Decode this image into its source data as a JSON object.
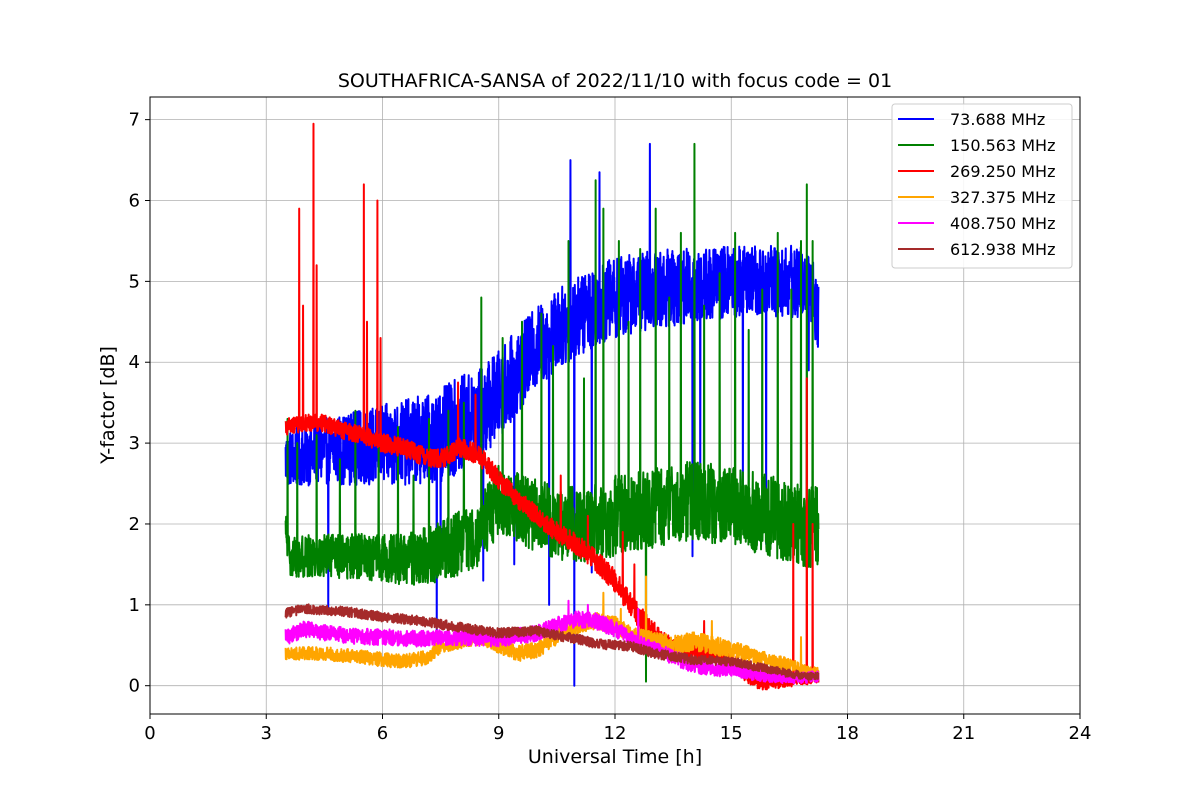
{
  "chart_data": {
    "type": "line",
    "title": "SOUTHAFRICA-SANSA of 2022/11/10 with focus code = 01",
    "xlabel": "Universal Time [h]",
    "ylabel": "Y-factor [dB]",
    "xlim": [
      0,
      24
    ],
    "ylim": [
      -0.35,
      7.28
    ],
    "xticks": [
      0,
      3,
      6,
      9,
      12,
      15,
      18,
      21,
      24
    ],
    "xtick_labels": [
      "0",
      "3",
      "6",
      "9",
      "12",
      "15",
      "18",
      "21",
      "24"
    ],
    "yticks": [
      0,
      1,
      2,
      3,
      4,
      5,
      6,
      7
    ],
    "ytick_labels": [
      "0",
      "1",
      "2",
      "3",
      "4",
      "5",
      "6",
      "7"
    ],
    "grid": true,
    "legend_position": "top-right",
    "series": [
      {
        "name": " 73.688 MHz",
        "color": "#0000ff",
        "base": [
          [
            3.5,
            2.8
          ],
          [
            4.5,
            2.9
          ],
          [
            5.5,
            2.95
          ],
          [
            6.5,
            3.0
          ],
          [
            7.5,
            3.1
          ],
          [
            8.5,
            3.35
          ],
          [
            9.0,
            3.6
          ],
          [
            9.5,
            3.9
          ],
          [
            10.0,
            4.2
          ],
          [
            10.5,
            4.4
          ],
          [
            11.0,
            4.55
          ],
          [
            11.5,
            4.7
          ],
          [
            12.0,
            4.8
          ],
          [
            12.5,
            4.85
          ],
          [
            13.0,
            4.9
          ],
          [
            14.0,
            4.95
          ],
          [
            15.0,
            5.0
          ],
          [
            16.0,
            5.0
          ],
          [
            17.0,
            5.0
          ],
          [
            17.25,
            4.6
          ]
        ],
        "amp": [
          [
            3.5,
            0.35
          ],
          [
            6.0,
            0.5
          ],
          [
            8.0,
            0.6
          ],
          [
            10.0,
            0.5
          ],
          [
            12.0,
            0.5
          ],
          [
            15.0,
            0.45
          ],
          [
            17.25,
            0.45
          ]
        ],
        "spikes": [
          [
            4.6,
            0.9
          ],
          [
            7.4,
            0.6
          ],
          [
            7.5,
            1.5
          ],
          [
            8.6,
            1.3
          ],
          [
            9.4,
            1.5
          ],
          [
            10.3,
            1.0
          ],
          [
            10.85,
            6.5
          ],
          [
            10.95,
            0.0
          ],
          [
            11.4,
            1.4
          ],
          [
            11.6,
            6.35
          ],
          [
            12.9,
            6.7
          ],
          [
            14.0,
            1.6
          ],
          [
            14.2,
            2.2
          ],
          [
            15.3,
            2.2
          ],
          [
            15.9,
            1.75
          ],
          [
            17.0,
            3.9
          ]
        ]
      },
      {
        "name": "150.563 MHz",
        "color": "#008000",
        "base": [
          [
            3.5,
            1.9
          ],
          [
            3.6,
            1.6
          ],
          [
            4.5,
            1.6
          ],
          [
            5.5,
            1.6
          ],
          [
            6.5,
            1.55
          ],
          [
            7.5,
            1.65
          ],
          [
            8.5,
            1.9
          ],
          [
            9.0,
            2.3
          ],
          [
            9.5,
            2.2
          ],
          [
            10.0,
            2.1
          ],
          [
            10.5,
            2.0
          ],
          [
            11.0,
            2.0
          ],
          [
            11.5,
            2.0
          ],
          [
            12.0,
            2.1
          ],
          [
            13.0,
            2.2
          ],
          [
            14.0,
            2.3
          ],
          [
            15.0,
            2.2
          ],
          [
            16.0,
            2.1
          ],
          [
            17.0,
            1.95
          ],
          [
            17.25,
            2.0
          ]
        ],
        "amp": [
          [
            3.5,
            0.25
          ],
          [
            6.0,
            0.3
          ],
          [
            8.0,
            0.4
          ],
          [
            12.0,
            0.5
          ],
          [
            17.25,
            0.5
          ]
        ],
        "spikes": [
          [
            3.55,
            3.3
          ],
          [
            3.8,
            3.0
          ],
          [
            4.3,
            3.1
          ],
          [
            4.9,
            2.8
          ],
          [
            5.3,
            3.4
          ],
          [
            5.9,
            3.0
          ],
          [
            6.4,
            3.2
          ],
          [
            6.8,
            2.6
          ],
          [
            7.2,
            3.3
          ],
          [
            7.7,
            3.4
          ],
          [
            8.1,
            3.5
          ],
          [
            8.55,
            4.8
          ],
          [
            9.1,
            4.3
          ],
          [
            9.6,
            4.5
          ],
          [
            10.1,
            4.6
          ],
          [
            10.4,
            4.2
          ],
          [
            10.8,
            5.5
          ],
          [
            11.2,
            3.8
          ],
          [
            11.5,
            6.25
          ],
          [
            11.7,
            5.9
          ],
          [
            12.1,
            5.5
          ],
          [
            12.35,
            4.5
          ],
          [
            12.65,
            5.4
          ],
          [
            12.8,
            0.05
          ],
          [
            13.05,
            5.9
          ],
          [
            13.4,
            4.8
          ],
          [
            13.7,
            5.6
          ],
          [
            14.05,
            6.7
          ],
          [
            14.3,
            4.7
          ],
          [
            14.7,
            5.1
          ],
          [
            15.1,
            5.6
          ],
          [
            15.45,
            4.4
          ],
          [
            15.8,
            4.9
          ],
          [
            16.2,
            5.6
          ],
          [
            16.55,
            4.9
          ],
          [
            16.8,
            5.5
          ],
          [
            16.95,
            6.2
          ],
          [
            17.1,
            5.5
          ]
        ]
      },
      {
        "name": "269.250 MHz",
        "color": "#ff0000",
        "base": [
          [
            3.5,
            3.2
          ],
          [
            4.0,
            3.25
          ],
          [
            4.5,
            3.25
          ],
          [
            5.0,
            3.15
          ],
          [
            5.5,
            3.1
          ],
          [
            6.0,
            3.0
          ],
          [
            6.5,
            2.95
          ],
          [
            7.0,
            2.85
          ],
          [
            7.5,
            2.8
          ],
          [
            8.0,
            2.95
          ],
          [
            8.5,
            2.85
          ],
          [
            9.0,
            2.55
          ],
          [
            9.5,
            2.3
          ],
          [
            10.0,
            2.1
          ],
          [
            10.5,
            1.9
          ],
          [
            11.0,
            1.75
          ],
          [
            11.5,
            1.55
          ],
          [
            12.0,
            1.3
          ],
          [
            12.4,
            1.0
          ],
          [
            12.8,
            0.75
          ],
          [
            13.2,
            0.55
          ],
          [
            13.6,
            0.45
          ],
          [
            14.0,
            0.45
          ],
          [
            14.5,
            0.4
          ],
          [
            15.0,
            0.3
          ],
          [
            15.4,
            0.15
          ],
          [
            15.7,
            0.05
          ],
          [
            16.0,
            0.05
          ],
          [
            16.5,
            0.08
          ],
          [
            17.0,
            0.1
          ],
          [
            17.25,
            0.12
          ]
        ],
        "amp": [
          [
            3.5,
            0.1
          ],
          [
            7.0,
            0.12
          ],
          [
            10.0,
            0.12
          ],
          [
            13.0,
            0.15
          ],
          [
            17.25,
            0.08
          ]
        ],
        "spikes": [
          [
            3.85,
            5.9
          ],
          [
            3.95,
            4.7
          ],
          [
            4.22,
            6.95
          ],
          [
            4.3,
            5.2
          ],
          [
            5.52,
            6.2
          ],
          [
            5.6,
            4.5
          ],
          [
            5.87,
            6.0
          ],
          [
            5.95,
            4.3
          ],
          [
            7.95,
            3.75
          ],
          [
            8.4,
            3.6
          ],
          [
            10.6,
            2.6
          ],
          [
            11.3,
            2.1
          ],
          [
            12.2,
            1.9
          ],
          [
            12.5,
            1.5
          ],
          [
            14.3,
            0.8
          ],
          [
            16.6,
            2.0
          ],
          [
            16.95,
            3.8
          ],
          [
            17.1,
            2.0
          ]
        ]
      },
      {
        "name": "327.375 MHz",
        "color": "#ffa500",
        "base": [
          [
            3.5,
            0.4
          ],
          [
            4.5,
            0.4
          ],
          [
            5.5,
            0.35
          ],
          [
            6.5,
            0.3
          ],
          [
            7.2,
            0.35
          ],
          [
            7.5,
            0.5
          ],
          [
            8.0,
            0.55
          ],
          [
            8.5,
            0.6
          ],
          [
            9.0,
            0.5
          ],
          [
            9.5,
            0.4
          ],
          [
            10.0,
            0.45
          ],
          [
            10.5,
            0.6
          ],
          [
            11.0,
            0.75
          ],
          [
            11.5,
            0.8
          ],
          [
            12.0,
            0.75
          ],
          [
            12.5,
            0.6
          ],
          [
            13.0,
            0.55
          ],
          [
            13.5,
            0.5
          ],
          [
            14.0,
            0.55
          ],
          [
            15.0,
            0.45
          ],
          [
            16.0,
            0.3
          ],
          [
            16.5,
            0.25
          ],
          [
            17.0,
            0.15
          ],
          [
            17.25,
            0.15
          ]
        ],
        "amp": [
          [
            3.5,
            0.08
          ],
          [
            10.0,
            0.1
          ],
          [
            14.0,
            0.12
          ],
          [
            17.25,
            0.08
          ]
        ],
        "spikes": [
          [
            11.7,
            1.15
          ],
          [
            12.15,
            0.95
          ],
          [
            12.8,
            1.35
          ],
          [
            14.5,
            0.8
          ],
          [
            16.8,
            0.6
          ]
        ]
      },
      {
        "name": "408.750 MHz",
        "color": "#ff00ff",
        "base": [
          [
            3.5,
            0.6
          ],
          [
            4.0,
            0.7
          ],
          [
            5.0,
            0.62
          ],
          [
            6.0,
            0.6
          ],
          [
            7.0,
            0.58
          ],
          [
            8.0,
            0.6
          ],
          [
            9.0,
            0.58
          ],
          [
            10.0,
            0.65
          ],
          [
            10.5,
            0.75
          ],
          [
            11.0,
            0.82
          ],
          [
            11.5,
            0.8
          ],
          [
            12.0,
            0.7
          ],
          [
            12.5,
            0.55
          ],
          [
            13.0,
            0.45
          ],
          [
            13.5,
            0.35
          ],
          [
            14.0,
            0.25
          ],
          [
            14.5,
            0.2
          ],
          [
            15.0,
            0.2
          ],
          [
            15.5,
            0.15
          ],
          [
            16.0,
            0.12
          ],
          [
            16.5,
            0.1
          ],
          [
            17.0,
            0.1
          ],
          [
            17.25,
            0.12
          ]
        ],
        "amp": [
          [
            3.5,
            0.1
          ],
          [
            8.0,
            0.1
          ],
          [
            12.0,
            0.1
          ],
          [
            17.25,
            0.07
          ]
        ],
        "spikes": [
          [
            10.8,
            1.05
          ],
          [
            11.3,
            1.0
          ],
          [
            12.6,
            0.95
          ]
        ]
      },
      {
        "name": "612.938 MHz",
        "color": "#a52a2a",
        "base": [
          [
            3.5,
            0.9
          ],
          [
            4.0,
            0.95
          ],
          [
            5.0,
            0.92
          ],
          [
            6.0,
            0.85
          ],
          [
            7.0,
            0.8
          ],
          [
            8.0,
            0.72
          ],
          [
            9.0,
            0.65
          ],
          [
            10.0,
            0.68
          ],
          [
            10.5,
            0.62
          ],
          [
            11.0,
            0.58
          ],
          [
            11.5,
            0.52
          ],
          [
            12.0,
            0.5
          ],
          [
            12.5,
            0.48
          ],
          [
            13.0,
            0.4
          ],
          [
            14.0,
            0.32
          ],
          [
            15.0,
            0.3
          ],
          [
            16.0,
            0.2
          ],
          [
            16.5,
            0.15
          ],
          [
            17.0,
            0.12
          ],
          [
            17.25,
            0.12
          ]
        ],
        "amp": [
          [
            3.5,
            0.06
          ],
          [
            9.0,
            0.06
          ],
          [
            13.0,
            0.06
          ],
          [
            17.25,
            0.05
          ]
        ],
        "spikes": []
      }
    ]
  }
}
